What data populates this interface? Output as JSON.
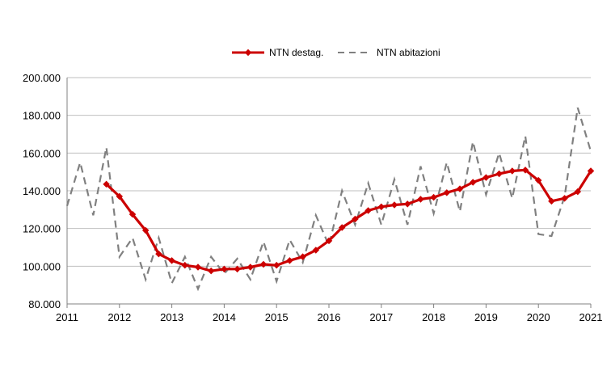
{
  "chart_data": {
    "type": "line",
    "title": "",
    "xlabel": "",
    "ylabel": "",
    "x_ticks": [
      "2011",
      "2012",
      "2013",
      "2014",
      "2015",
      "2016",
      "2017",
      "2018",
      "2019",
      "2020",
      "2021"
    ],
    "y_ticks": [
      "80.000",
      "100.000",
      "120.000",
      "140.000",
      "160.000",
      "180.000",
      "200.000"
    ],
    "xlim": [
      2011,
      2021
    ],
    "ylim": [
      80000,
      200000
    ],
    "grid": "horizontal",
    "legend_position": "top",
    "series": [
      {
        "name": "NTN destag.",
        "style": "solid-diamond",
        "color": "#cc0000",
        "x": [
          2011.75,
          2012.0,
          2012.25,
          2012.5,
          2012.75,
          2013.0,
          2013.25,
          2013.5,
          2013.75,
          2014.0,
          2014.25,
          2014.5,
          2014.75,
          2015.0,
          2015.25,
          2015.5,
          2015.75,
          2016.0,
          2016.25,
          2016.5,
          2016.75,
          2017.0,
          2017.25,
          2017.5,
          2017.75,
          2018.0,
          2018.25,
          2018.5,
          2018.75,
          2019.0,
          2019.25,
          2019.5,
          2019.75,
          2020.0,
          2020.25,
          2020.5,
          2020.75,
          2021.0
        ],
        "y": [
          143500,
          137000,
          127500,
          119000,
          106500,
          103000,
          100500,
          99500,
          97500,
          98500,
          98500,
          99500,
          101000,
          100500,
          103000,
          105000,
          108500,
          113500,
          120500,
          125000,
          129500,
          131500,
          132500,
          133000,
          135500,
          136500,
          139000,
          141000,
          144500,
          147000,
          149000,
          150500,
          151000,
          145500,
          134500,
          136000,
          139500,
          150500
        ]
      },
      {
        "name": "NTN abitazioni",
        "style": "dashed",
        "color": "#808080",
        "x": [
          2011.0,
          2011.25,
          2011.5,
          2011.75,
          2012.0,
          2012.25,
          2012.5,
          2012.75,
          2013.0,
          2013.25,
          2013.5,
          2013.75,
          2014.0,
          2014.25,
          2014.5,
          2014.75,
          2015.0,
          2015.25,
          2015.5,
          2015.75,
          2016.0,
          2016.25,
          2016.5,
          2016.75,
          2017.0,
          2017.25,
          2017.5,
          2017.75,
          2018.0,
          2018.25,
          2018.5,
          2018.75,
          2019.0,
          2019.25,
          2019.5,
          2019.75,
          2020.0,
          2020.25,
          2020.5,
          2020.75,
          2021.0
        ],
        "y": [
          132000,
          155000,
          127000,
          163000,
          105000,
          115000,
          93000,
          115000,
          91000,
          105000,
          88000,
          105000,
          96000,
          104000,
          93000,
          113000,
          92000,
          114000,
          102000,
          127000,
          111000,
          140000,
          122000,
          144000,
          122000,
          146000,
          122000,
          153000,
          128000,
          155000,
          129000,
          166000,
          138000,
          160000,
          136000,
          169000,
          117000,
          116000,
          137000,
          184000,
          161000
        ]
      }
    ]
  }
}
